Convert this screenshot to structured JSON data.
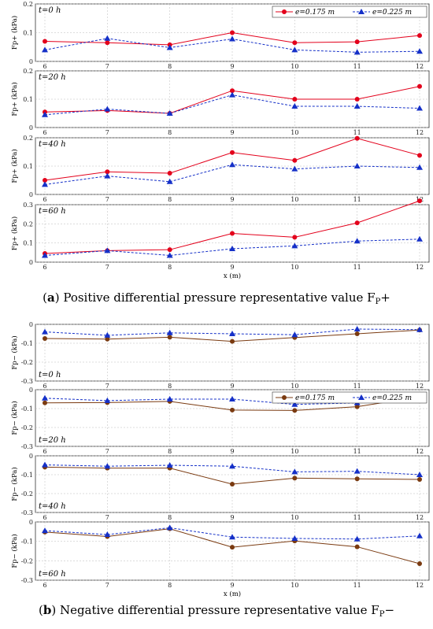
{
  "captions": {
    "a_letter": "a",
    "a_text": "Positive differential pressure representative value F",
    "a_sub": "P",
    "a_sign": "+",
    "b_letter": "b",
    "b_text": "Negative differential pressure representative value F",
    "b_sub": "P",
    "b_sign": "−"
  },
  "chart_data": [
    {
      "type": "line",
      "group": "a",
      "panel_label": "t=0 h",
      "ylabel": "Fp+ (kPa)",
      "xlabel": "",
      "ylim": [
        0,
        0.2
      ],
      "yticks": [
        "0",
        "0.1",
        "0.2"
      ],
      "x": [
        6,
        7,
        8,
        9,
        10,
        11,
        12
      ],
      "series": [
        {
          "name": "e=0.175 m",
          "color": "#e3001b",
          "marker": "circle",
          "dash": "solid",
          "values": [
            0.07,
            0.065,
            0.058,
            0.1,
            0.065,
            0.068,
            0.09
          ]
        },
        {
          "name": "e=0.225 m",
          "color": "#1530c8",
          "marker": "triangle",
          "dash": "dashed",
          "values": [
            0.04,
            0.08,
            0.048,
            0.078,
            0.04,
            0.032,
            0.035
          ]
        }
      ],
      "legend": "top-right",
      "grid": true
    },
    {
      "type": "line",
      "group": "a",
      "panel_label": "t=20 h",
      "ylabel": "Fp+ (kPa)",
      "xlabel": "",
      "ylim": [
        0,
        0.2
      ],
      "yticks": [
        "0",
        "0.1",
        "0.2"
      ],
      "x": [
        6,
        7,
        8,
        9,
        10,
        11,
        12
      ],
      "series": [
        {
          "name": "e=0.175 m",
          "color": "#e3001b",
          "marker": "circle",
          "dash": "solid",
          "values": [
            0.055,
            0.06,
            0.05,
            0.13,
            0.1,
            0.1,
            0.145
          ]
        },
        {
          "name": "e=0.225 m",
          "color": "#1530c8",
          "marker": "triangle",
          "dash": "dashed",
          "values": [
            0.045,
            0.065,
            0.05,
            0.115,
            0.075,
            0.075,
            0.068
          ]
        }
      ],
      "grid": true
    },
    {
      "type": "line",
      "group": "a",
      "panel_label": "t=40 h",
      "ylabel": "Fp+ (kPa)",
      "xlabel": "",
      "ylim": [
        0,
        0.2
      ],
      "yticks": [
        "0",
        "0.1",
        "0.2"
      ],
      "x": [
        6,
        7,
        8,
        9,
        10,
        11,
        12
      ],
      "series": [
        {
          "name": "e=0.175 m",
          "color": "#e3001b",
          "marker": "circle",
          "dash": "solid",
          "values": [
            0.05,
            0.08,
            0.075,
            0.148,
            0.12,
            0.198,
            0.138
          ]
        },
        {
          "name": "e=0.225 m",
          "color": "#1530c8",
          "marker": "triangle",
          "dash": "dashed",
          "values": [
            0.035,
            0.065,
            0.045,
            0.105,
            0.09,
            0.1,
            0.095
          ]
        }
      ],
      "grid": true
    },
    {
      "type": "line",
      "group": "a",
      "panel_label": "t=60 h",
      "ylabel": "Fp+ (kPa)",
      "xlabel": "x (m)",
      "ylim": [
        0,
        0.3
      ],
      "yticks": [
        "0",
        "0.1",
        "0.2",
        "0.3"
      ],
      "x": [
        6,
        7,
        8,
        9,
        10,
        11,
        12
      ],
      "series": [
        {
          "name": "e=0.175 m",
          "color": "#e3001b",
          "marker": "circle",
          "dash": "solid",
          "values": [
            0.045,
            0.06,
            0.065,
            0.15,
            0.13,
            0.205,
            0.32
          ]
        },
        {
          "name": "e=0.225 m",
          "color": "#1530c8",
          "marker": "triangle",
          "dash": "dashed",
          "values": [
            0.035,
            0.06,
            0.035,
            0.07,
            0.085,
            0.11,
            0.12
          ]
        }
      ],
      "grid": true
    },
    {
      "type": "line",
      "group": "b",
      "panel_label": "t=0 h",
      "ylabel": "Fp− (kPa)",
      "xlabel": "",
      "ylim": [
        -0.3,
        0
      ],
      "yticks": [
        "0",
        "-0.1",
        "-0.2",
        "-0.3"
      ],
      "x": [
        6,
        7,
        8,
        9,
        10,
        11,
        12
      ],
      "series": [
        {
          "name": "e=0.175 m",
          "color": "#7a3a10",
          "marker": "circle",
          "dash": "solid",
          "values": [
            -0.075,
            -0.078,
            -0.068,
            -0.09,
            -0.07,
            -0.05,
            -0.03
          ]
        },
        {
          "name": "e=0.225 m",
          "color": "#1530c8",
          "marker": "triangle",
          "dash": "dashed",
          "values": [
            -0.04,
            -0.058,
            -0.045,
            -0.05,
            -0.055,
            -0.025,
            -0.028
          ]
        }
      ],
      "grid": true
    },
    {
      "type": "line",
      "group": "b",
      "panel_label": "t=20 h",
      "ylabel": "Fp− (kPa)",
      "xlabel": "",
      "ylim": [
        -0.3,
        0
      ],
      "yticks": [
        "0",
        "-0.1",
        "-0.2",
        "-0.3"
      ],
      "x": [
        6,
        7,
        8,
        9,
        10,
        11,
        12
      ],
      "series": [
        {
          "name": "e=0.175 m",
          "color": "#7a3a10",
          "marker": "circle",
          "dash": "solid",
          "values": [
            -0.07,
            -0.068,
            -0.062,
            -0.108,
            -0.11,
            -0.09,
            -0.038
          ]
        },
        {
          "name": "e=0.225 m",
          "color": "#1530c8",
          "marker": "triangle",
          "dash": "dashed",
          "values": [
            -0.045,
            -0.058,
            -0.05,
            -0.05,
            -0.078,
            -0.07,
            -0.055
          ]
        }
      ],
      "legend": "top-right",
      "grid": true
    },
    {
      "type": "line",
      "group": "b",
      "panel_label": "t=40 h",
      "ylabel": "Fp− (kPa)",
      "xlabel": "",
      "ylim": [
        -0.3,
        0
      ],
      "yticks": [
        "0",
        "-0.1",
        "-0.2",
        "-0.3"
      ],
      "x": [
        6,
        7,
        8,
        9,
        10,
        11,
        12
      ],
      "series": [
        {
          "name": "e=0.175 m",
          "color": "#7a3a10",
          "marker": "circle",
          "dash": "solid",
          "values": [
            -0.06,
            -0.065,
            -0.065,
            -0.15,
            -0.118,
            -0.122,
            -0.125
          ]
        },
        {
          "name": "e=0.225 m",
          "color": "#1530c8",
          "marker": "triangle",
          "dash": "dashed",
          "values": [
            -0.048,
            -0.055,
            -0.05,
            -0.055,
            -0.085,
            -0.082,
            -0.1
          ]
        }
      ],
      "grid": true
    },
    {
      "type": "line",
      "group": "b",
      "panel_label": "t=60 h",
      "ylabel": "Fp− (kPa)",
      "xlabel": "x (m)",
      "ylim": [
        -0.3,
        0
      ],
      "yticks": [
        "0",
        "-0.1",
        "-0.2",
        "-0.3"
      ],
      "x": [
        6,
        7,
        8,
        9,
        10,
        11,
        12
      ],
      "series": [
        {
          "name": "e=0.175 m",
          "color": "#7a3a10",
          "marker": "circle",
          "dash": "solid",
          "values": [
            -0.052,
            -0.075,
            -0.035,
            -0.13,
            -0.098,
            -0.128,
            -0.215
          ]
        },
        {
          "name": "e=0.225 m",
          "color": "#1530c8",
          "marker": "triangle",
          "dash": "dashed",
          "values": [
            -0.045,
            -0.065,
            -0.03,
            -0.078,
            -0.085,
            -0.088,
            -0.072
          ]
        }
      ],
      "grid": true
    }
  ]
}
